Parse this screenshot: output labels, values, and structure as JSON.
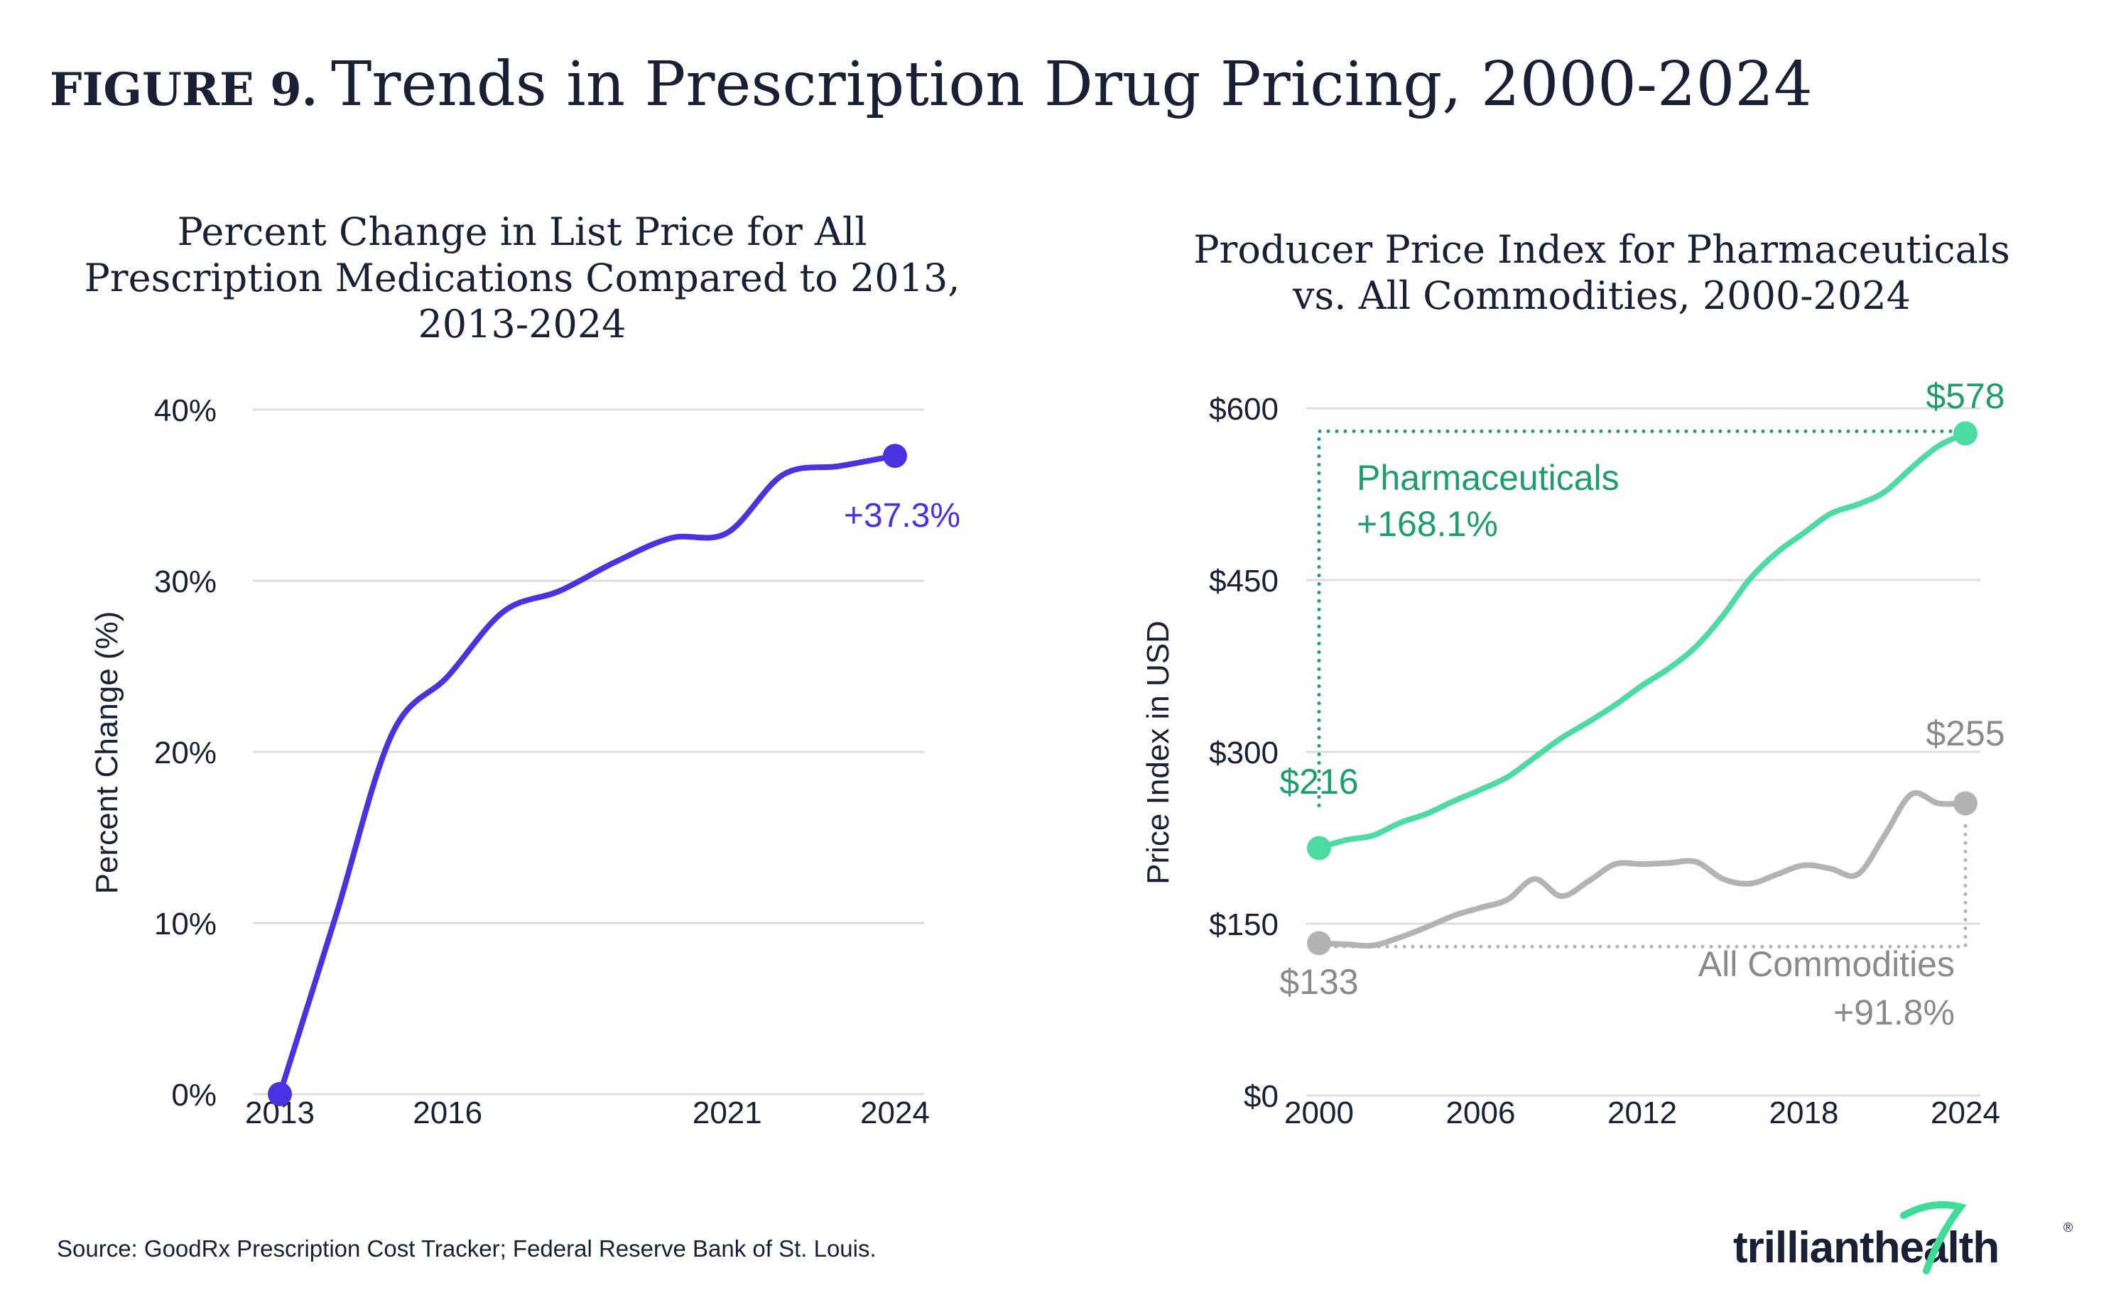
{
  "figure": {
    "label": "FIGURE 9.",
    "title": "Trends in Prescription Drug Pricing, 2000-2024"
  },
  "source": "Source: GoodRx Prescription Cost Tracker; Federal Reserve Bank of St. Louis.",
  "logo": {
    "text_left": "trilliant",
    "text_right": "health",
    "registered": "®",
    "color": "#1a1f36",
    "accent": "#3ddc97"
  },
  "chart_data": [
    {
      "type": "line",
      "title_lines": [
        "Percent Change in List Price for All",
        "Prescription Medications Compared to 2013,",
        "2013-2024"
      ],
      "xlabel": "",
      "ylabel": "Percent Change (%)",
      "ylim": [
        0,
        40
      ],
      "yticks": [
        0,
        10,
        20,
        30,
        40
      ],
      "ytick_labels": [
        "0%",
        "10%",
        "20%",
        "30%",
        "40%"
      ],
      "xlim": [
        2013,
        2024
      ],
      "xticks": [
        2013,
        2016,
        2021,
        2024
      ],
      "xtick_labels": [
        "2013",
        "2016",
        "2021",
        "2024"
      ],
      "grid": true,
      "series": [
        {
          "color": "#4a32e0",
          "x": [
            2013,
            2014,
            2015,
            2016,
            2017,
            2018,
            2019,
            2020,
            2021,
            2022,
            2023,
            2024
          ],
          "values": [
            0,
            10.4,
            21.0,
            24.4,
            28.2,
            29.4,
            31.1,
            32.5,
            32.8,
            36.2,
            36.7,
            37.3
          ]
        }
      ],
      "annotations": [
        {
          "text": "+37.3%",
          "x": 2024,
          "y": 37.3,
          "color": "#4a32e0"
        }
      ]
    },
    {
      "type": "line",
      "title_lines": [
        "Producer Price Index for Pharmaceuticals",
        "vs. All Commodities, 2000-2024"
      ],
      "xlabel": "",
      "ylabel": "Price Index in USD",
      "ylim": [
        0,
        600
      ],
      "yticks": [
        0,
        150,
        300,
        450,
        600
      ],
      "ytick_labels": [
        "$0",
        "$150",
        "$300",
        "$450",
        "$600"
      ],
      "xlim": [
        2000,
        2024
      ],
      "xticks": [
        2000,
        2006,
        2012,
        2018,
        2024
      ],
      "xtick_labels": [
        "2000",
        "2006",
        "2012",
        "2018",
        "2024"
      ],
      "grid": true,
      "series": [
        {
          "name": "Pharmaceuticals",
          "change": "+168.1%",
          "color": "#4cdba3",
          "label_color": "#1e9e6e",
          "x": [
            2000,
            2001,
            2002,
            2003,
            2004,
            2005,
            2006,
            2007,
            2008,
            2009,
            2010,
            2011,
            2012,
            2013,
            2014,
            2015,
            2016,
            2017,
            2018,
            2019,
            2020,
            2021,
            2022,
            2023,
            2024
          ],
          "values": [
            216,
            223,
            227,
            238,
            246,
            257,
            267,
            278,
            295,
            312,
            326,
            341,
            358,
            373,
            392,
            419,
            451,
            474,
            491,
            508,
            516,
            527,
            548,
            567,
            578
          ],
          "start_label": "$216",
          "end_label": "$578"
        },
        {
          "name": "All Commodities",
          "change": "+91.8%",
          "color": "#b3b3b3",
          "label_color": "#8a8a8a",
          "x": [
            2000,
            2001,
            2002,
            2003,
            2004,
            2005,
            2006,
            2007,
            2008,
            2009,
            2010,
            2011,
            2012,
            2013,
            2014,
            2015,
            2016,
            2017,
            2018,
            2019,
            2020,
            2021,
            2022,
            2023,
            2024
          ],
          "values": [
            133,
            132,
            131,
            138,
            147,
            157,
            164,
            171,
            189,
            174,
            187,
            202,
            202,
            203,
            204,
            189,
            185,
            193,
            201,
            198,
            193,
            227,
            263,
            255,
            255
          ],
          "start_label": "$133",
          "end_label": "$255"
        }
      ]
    }
  ]
}
